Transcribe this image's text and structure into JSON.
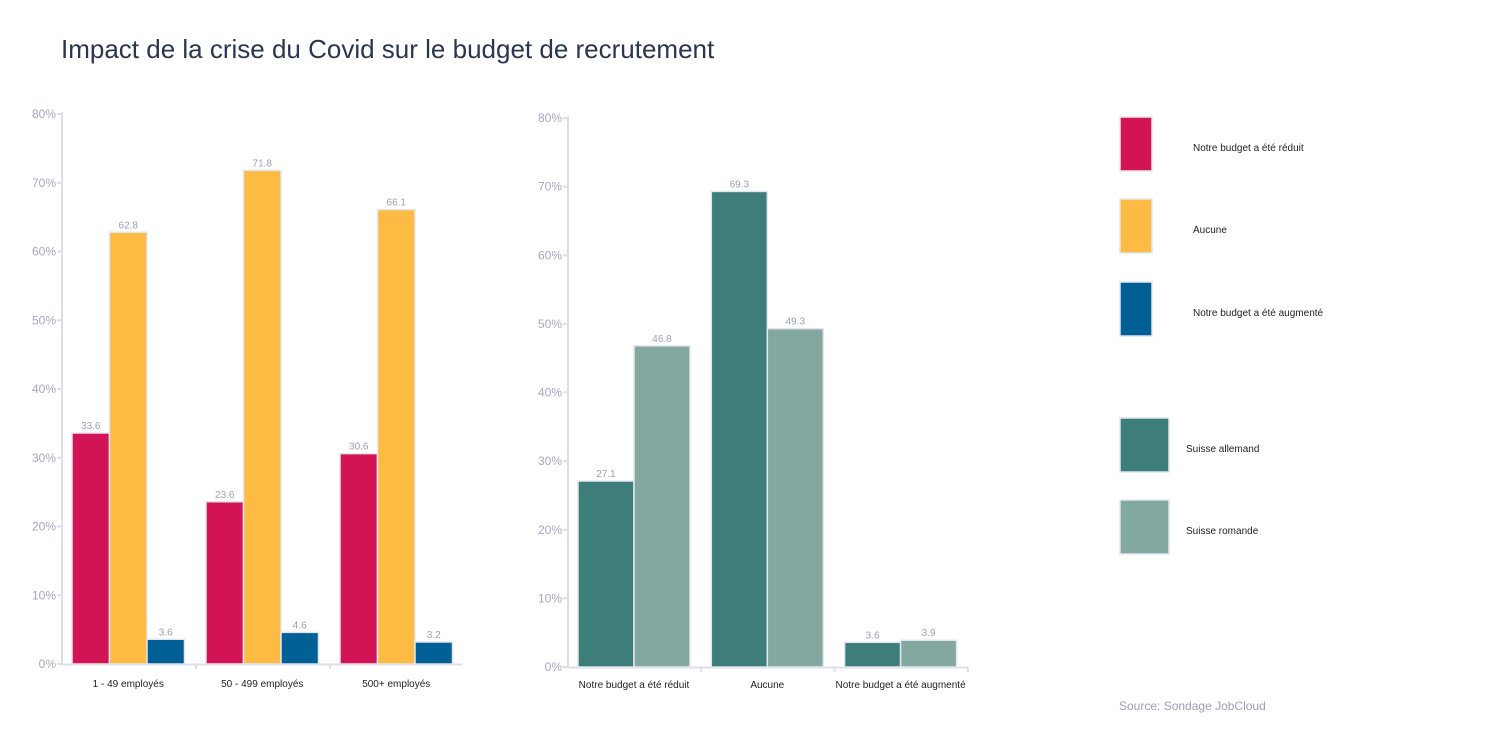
{
  "title": "Impact de la crise du Covid sur le budget de recrutement",
  "source": "Source: Sondage JobCloud",
  "chart_data": [
    {
      "type": "bar",
      "categories": [
        "1 - 49 employés",
        "50 - 499 employés",
        "500+ employés"
      ],
      "series": [
        {
          "name": "Notre budget a été réduit",
          "color": "#d21355",
          "values": [
            33.6,
            23.6,
            30.6
          ]
        },
        {
          "name": "Aucune",
          "color": "#fdbb43",
          "values": [
            62.8,
            71.8,
            66.1
          ]
        },
        {
          "name": "Notre budget a été augmenté",
          "color": "#006096",
          "values": [
            3.6,
            4.6,
            3.2
          ]
        }
      ],
      "ylim": [
        0,
        80
      ],
      "yticks": [
        "0%",
        "10%",
        "20%",
        "30%",
        "40%",
        "50%",
        "60%",
        "70%",
        "80%"
      ],
      "grid": false,
      "legend": "right"
    },
    {
      "type": "bar",
      "categories": [
        "Notre budget a été réduit",
        "Aucune",
        "Notre budget a été augmenté"
      ],
      "series": [
        {
          "name": "Suisse allemand",
          "color": "#3d7e7b",
          "values": [
            27.1,
            69.3,
            3.6
          ]
        },
        {
          "name": "Suisse romande",
          "color": "#83a8a0",
          "values": [
            46.8,
            49.3,
            3.9
          ]
        }
      ],
      "ylim": [
        0,
        80
      ],
      "yticks": [
        "0%",
        "10%",
        "20%",
        "30%",
        "40%",
        "50%",
        "60%",
        "70%",
        "80%"
      ],
      "grid": false,
      "legend": "right"
    }
  ]
}
